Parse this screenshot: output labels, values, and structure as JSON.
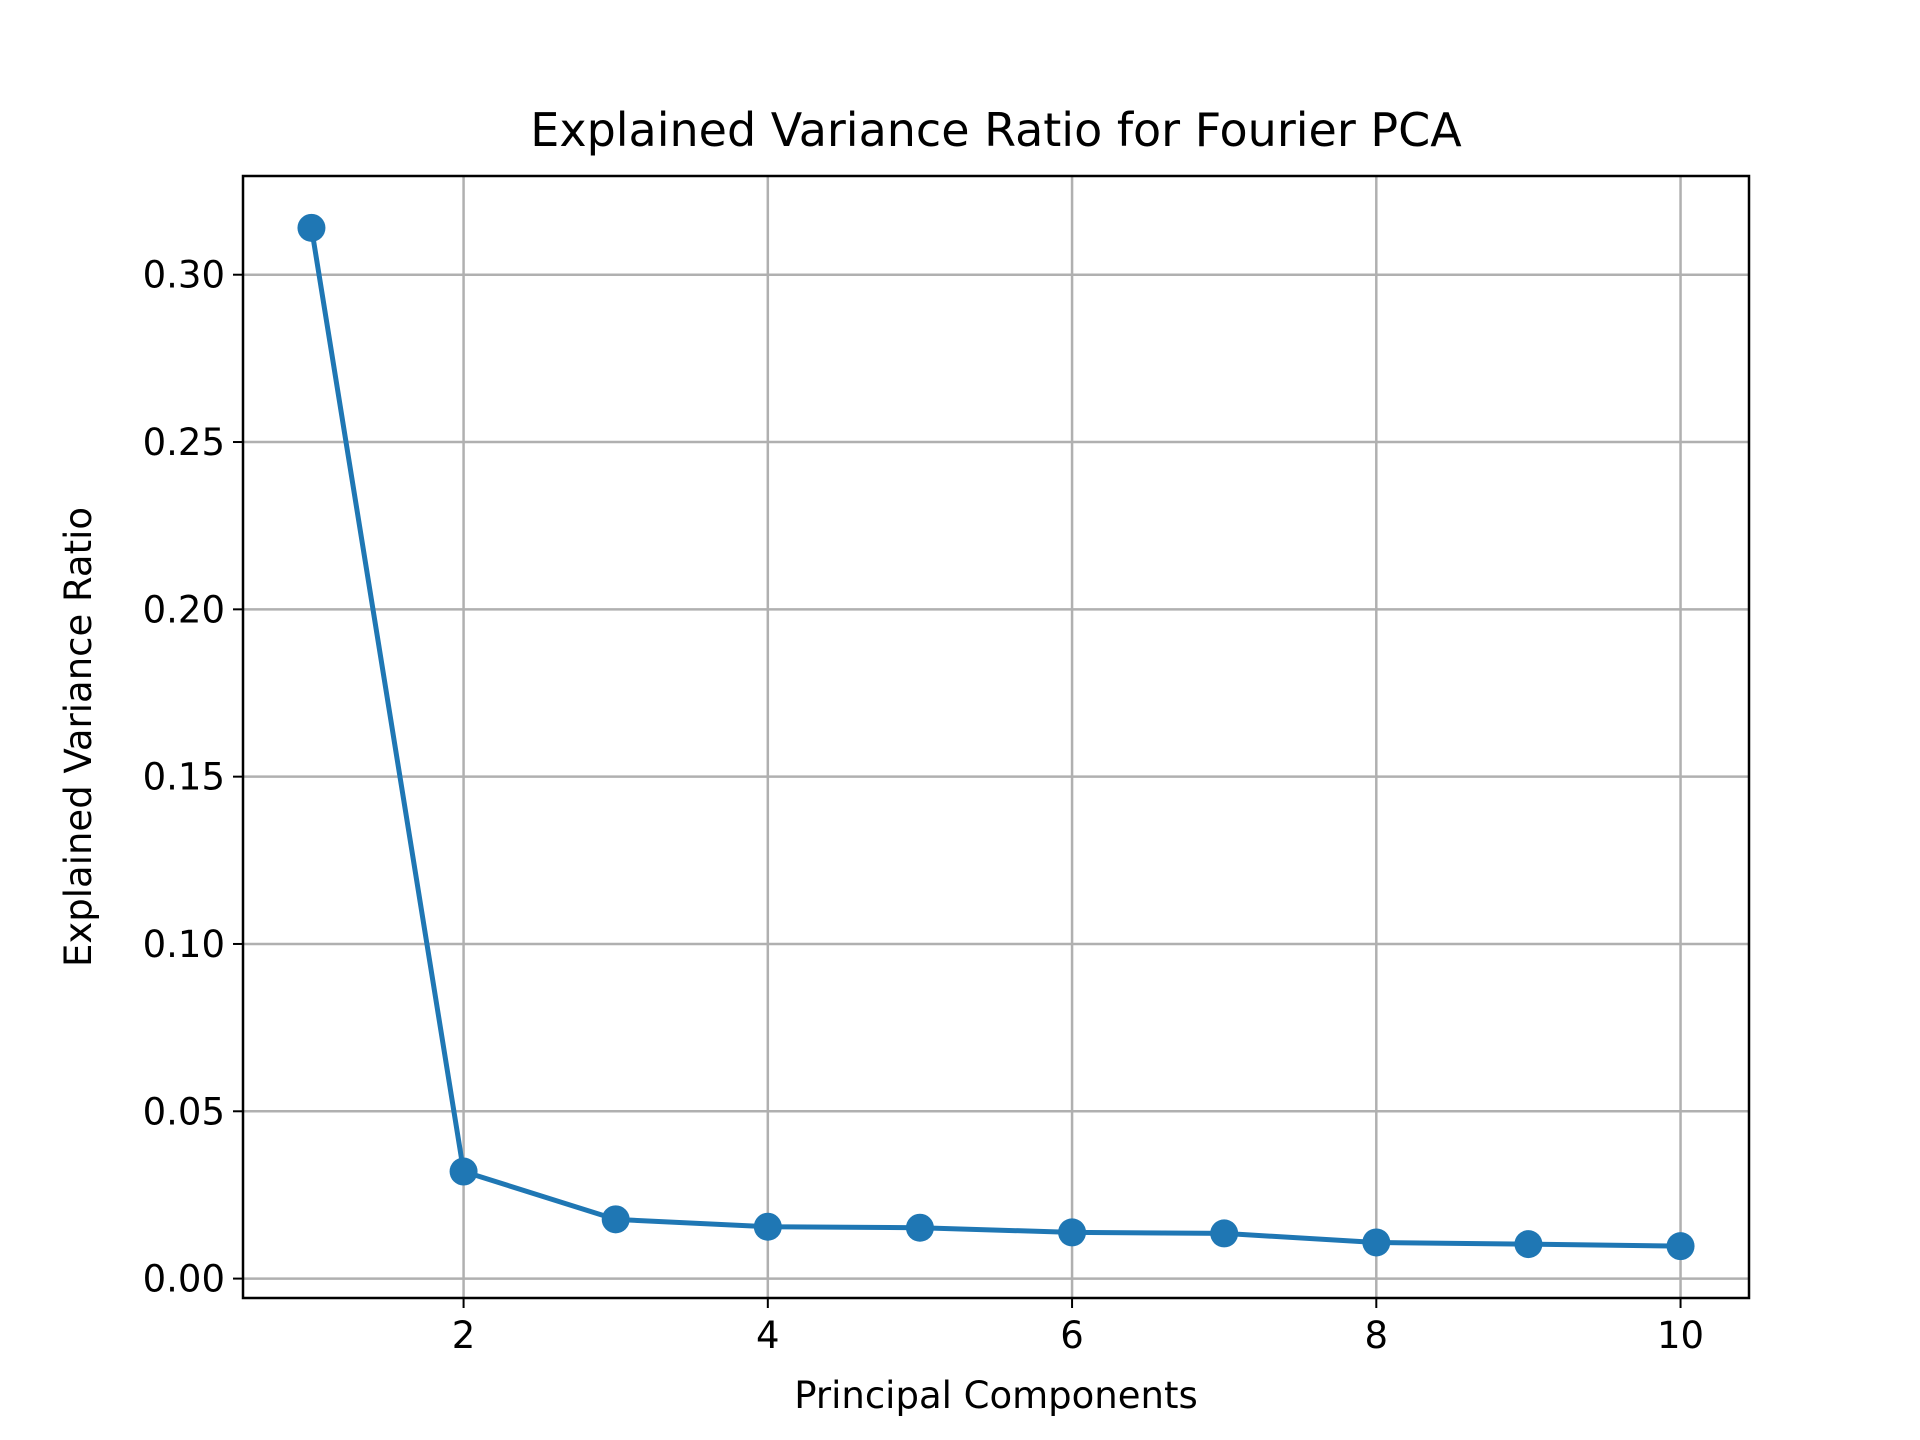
{
  "chart_data": {
    "type": "line",
    "title": "Explained Variance Ratio for Fourier PCA",
    "xlabel": "Principal Components",
    "ylabel": "Explained Variance Ratio",
    "x": [
      1,
      2,
      3,
      4,
      5,
      6,
      7,
      8,
      9,
      10
    ],
    "series": [
      {
        "values": [
          0.314,
          0.032,
          0.0177,
          0.0155,
          0.0152,
          0.0138,
          0.0135,
          0.0108,
          0.0103,
          0.0097
        ],
        "color": "#1f77b4",
        "marker": "circle"
      }
    ],
    "xlim": [
      0.55,
      10.45
    ],
    "ylim": [
      -0.0058,
      0.3295
    ],
    "xticks": [
      2,
      4,
      6,
      8,
      10
    ],
    "xtick_labels": [
      "2",
      "4",
      "6",
      "8",
      "10"
    ],
    "yticks": [
      0.0,
      0.05,
      0.1,
      0.15,
      0.2,
      0.25,
      0.3
    ],
    "ytick_labels": [
      "0.00",
      "0.05",
      "0.10",
      "0.15",
      "0.20",
      "0.25",
      "0.30"
    ],
    "grid": true,
    "legend": "none"
  }
}
